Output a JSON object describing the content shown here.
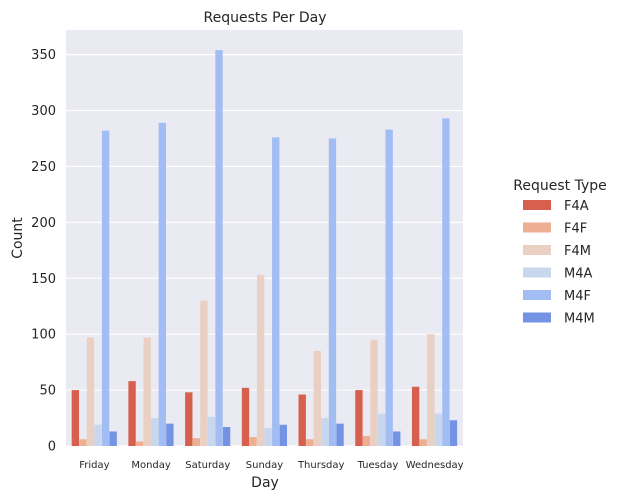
{
  "chart_data": {
    "type": "bar",
    "title": "Requests Per Day",
    "xlabel": "Day",
    "ylabel": "Count",
    "ylim": [
      0,
      372
    ],
    "yticks": [
      0,
      50,
      100,
      150,
      200,
      250,
      300,
      350
    ],
    "grid": true,
    "legend_title": "Request Type",
    "legend_position": "right",
    "categories": [
      "Friday",
      "Monday",
      "Saturday",
      "Sunday",
      "Thursday",
      "Tuesday",
      "Wednesday"
    ],
    "series": [
      {
        "name": "F4A",
        "color": "#d6604d",
        "values": [
          50,
          58,
          48,
          52,
          46,
          50,
          53
        ]
      },
      {
        "name": "F4F",
        "color": "#eeae91",
        "values": [
          6,
          4,
          7,
          8,
          6,
          9,
          6
        ]
      },
      {
        "name": "F4M",
        "color": "#eacfc3",
        "values": [
          97,
          97,
          130,
          153,
          85,
          95,
          100
        ]
      },
      {
        "name": "M4A",
        "color": "#c9d7ee",
        "values": [
          19,
          25,
          26,
          16,
          25,
          29,
          29
        ]
      },
      {
        "name": "M4F",
        "color": "#a2bdf4",
        "values": [
          282,
          289,
          354,
          276,
          275,
          283,
          293
        ]
      },
      {
        "name": "M4M",
        "color": "#7593e3",
        "values": [
          13,
          20,
          17,
          19,
          20,
          13,
          23
        ]
      }
    ]
  }
}
